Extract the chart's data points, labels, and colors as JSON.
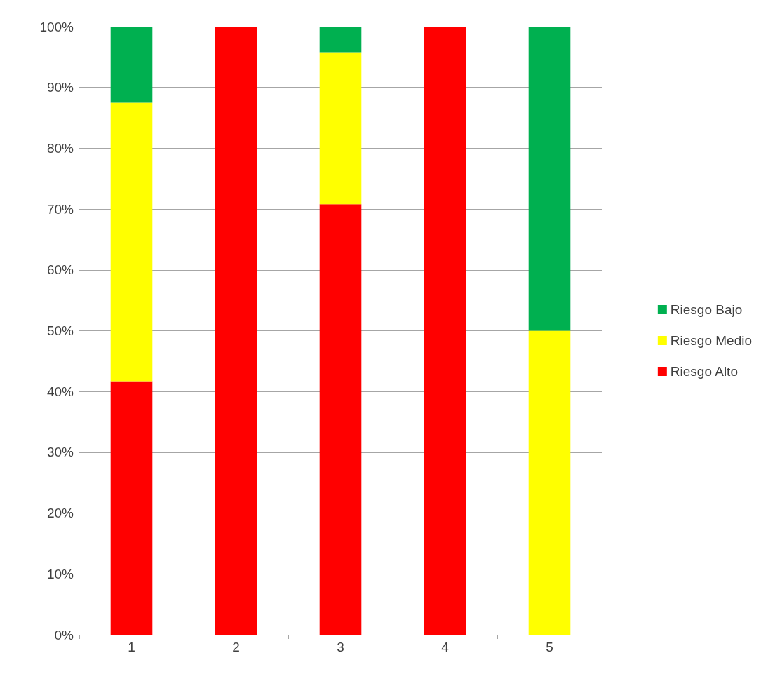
{
  "chart_data": {
    "type": "bar",
    "stacked": true,
    "categories": [
      "1",
      "2",
      "3",
      "4",
      "5"
    ],
    "series": [
      {
        "name": "Riesgo Alto",
        "color": "#ff0000",
        "values": [
          41.7,
          100,
          70.8,
          100,
          0
        ]
      },
      {
        "name": "Riesgo Medio",
        "color": "#ffff00",
        "values": [
          45.8,
          0,
          25,
          0,
          50
        ]
      },
      {
        "name": "Riesgo Bajo",
        "color": "#00b050",
        "values": [
          12.5,
          0,
          4.2,
          0,
          50
        ]
      }
    ],
    "ylim": [
      0,
      100
    ],
    "yticks": [
      {
        "value": 0,
        "label": "0%"
      },
      {
        "value": 10,
        "label": "10%"
      },
      {
        "value": 20,
        "label": "20%"
      },
      {
        "value": 30,
        "label": "30%"
      },
      {
        "value": 40,
        "label": "40%"
      },
      {
        "value": 50,
        "label": "50%"
      },
      {
        "value": 60,
        "label": "60%"
      },
      {
        "value": 70,
        "label": "70%"
      },
      {
        "value": 80,
        "label": "80%"
      },
      {
        "value": 90,
        "label": "90%"
      },
      {
        "value": 100,
        "label": "100%"
      }
    ],
    "grid": "y",
    "legend": "right"
  }
}
